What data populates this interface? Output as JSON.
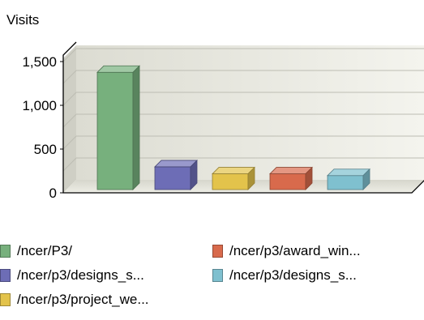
{
  "chart_data": {
    "type": "bar",
    "ylabel": "Visits",
    "ylim": [
      0,
      1500
    ],
    "yticks": [
      0,
      500,
      1000,
      1500
    ],
    "ytick_labels": [
      "0",
      "500",
      "1,000",
      "1,500"
    ],
    "grid": true,
    "style": "3d",
    "legend_position": "bottom",
    "categories": [
      "/ncer/P3/",
      "/ncer/p3/designs_s...",
      "/ncer/p3/project_we...",
      "/ncer/p3/award_win...",
      "/ncer/p3/designs_s..."
    ],
    "values": [
      1340,
      260,
      180,
      180,
      160
    ],
    "colors": [
      "#77b07d",
      "#6d6db6",
      "#e3c34b",
      "#d86a4c",
      "#7fc0cf"
    ]
  }
}
